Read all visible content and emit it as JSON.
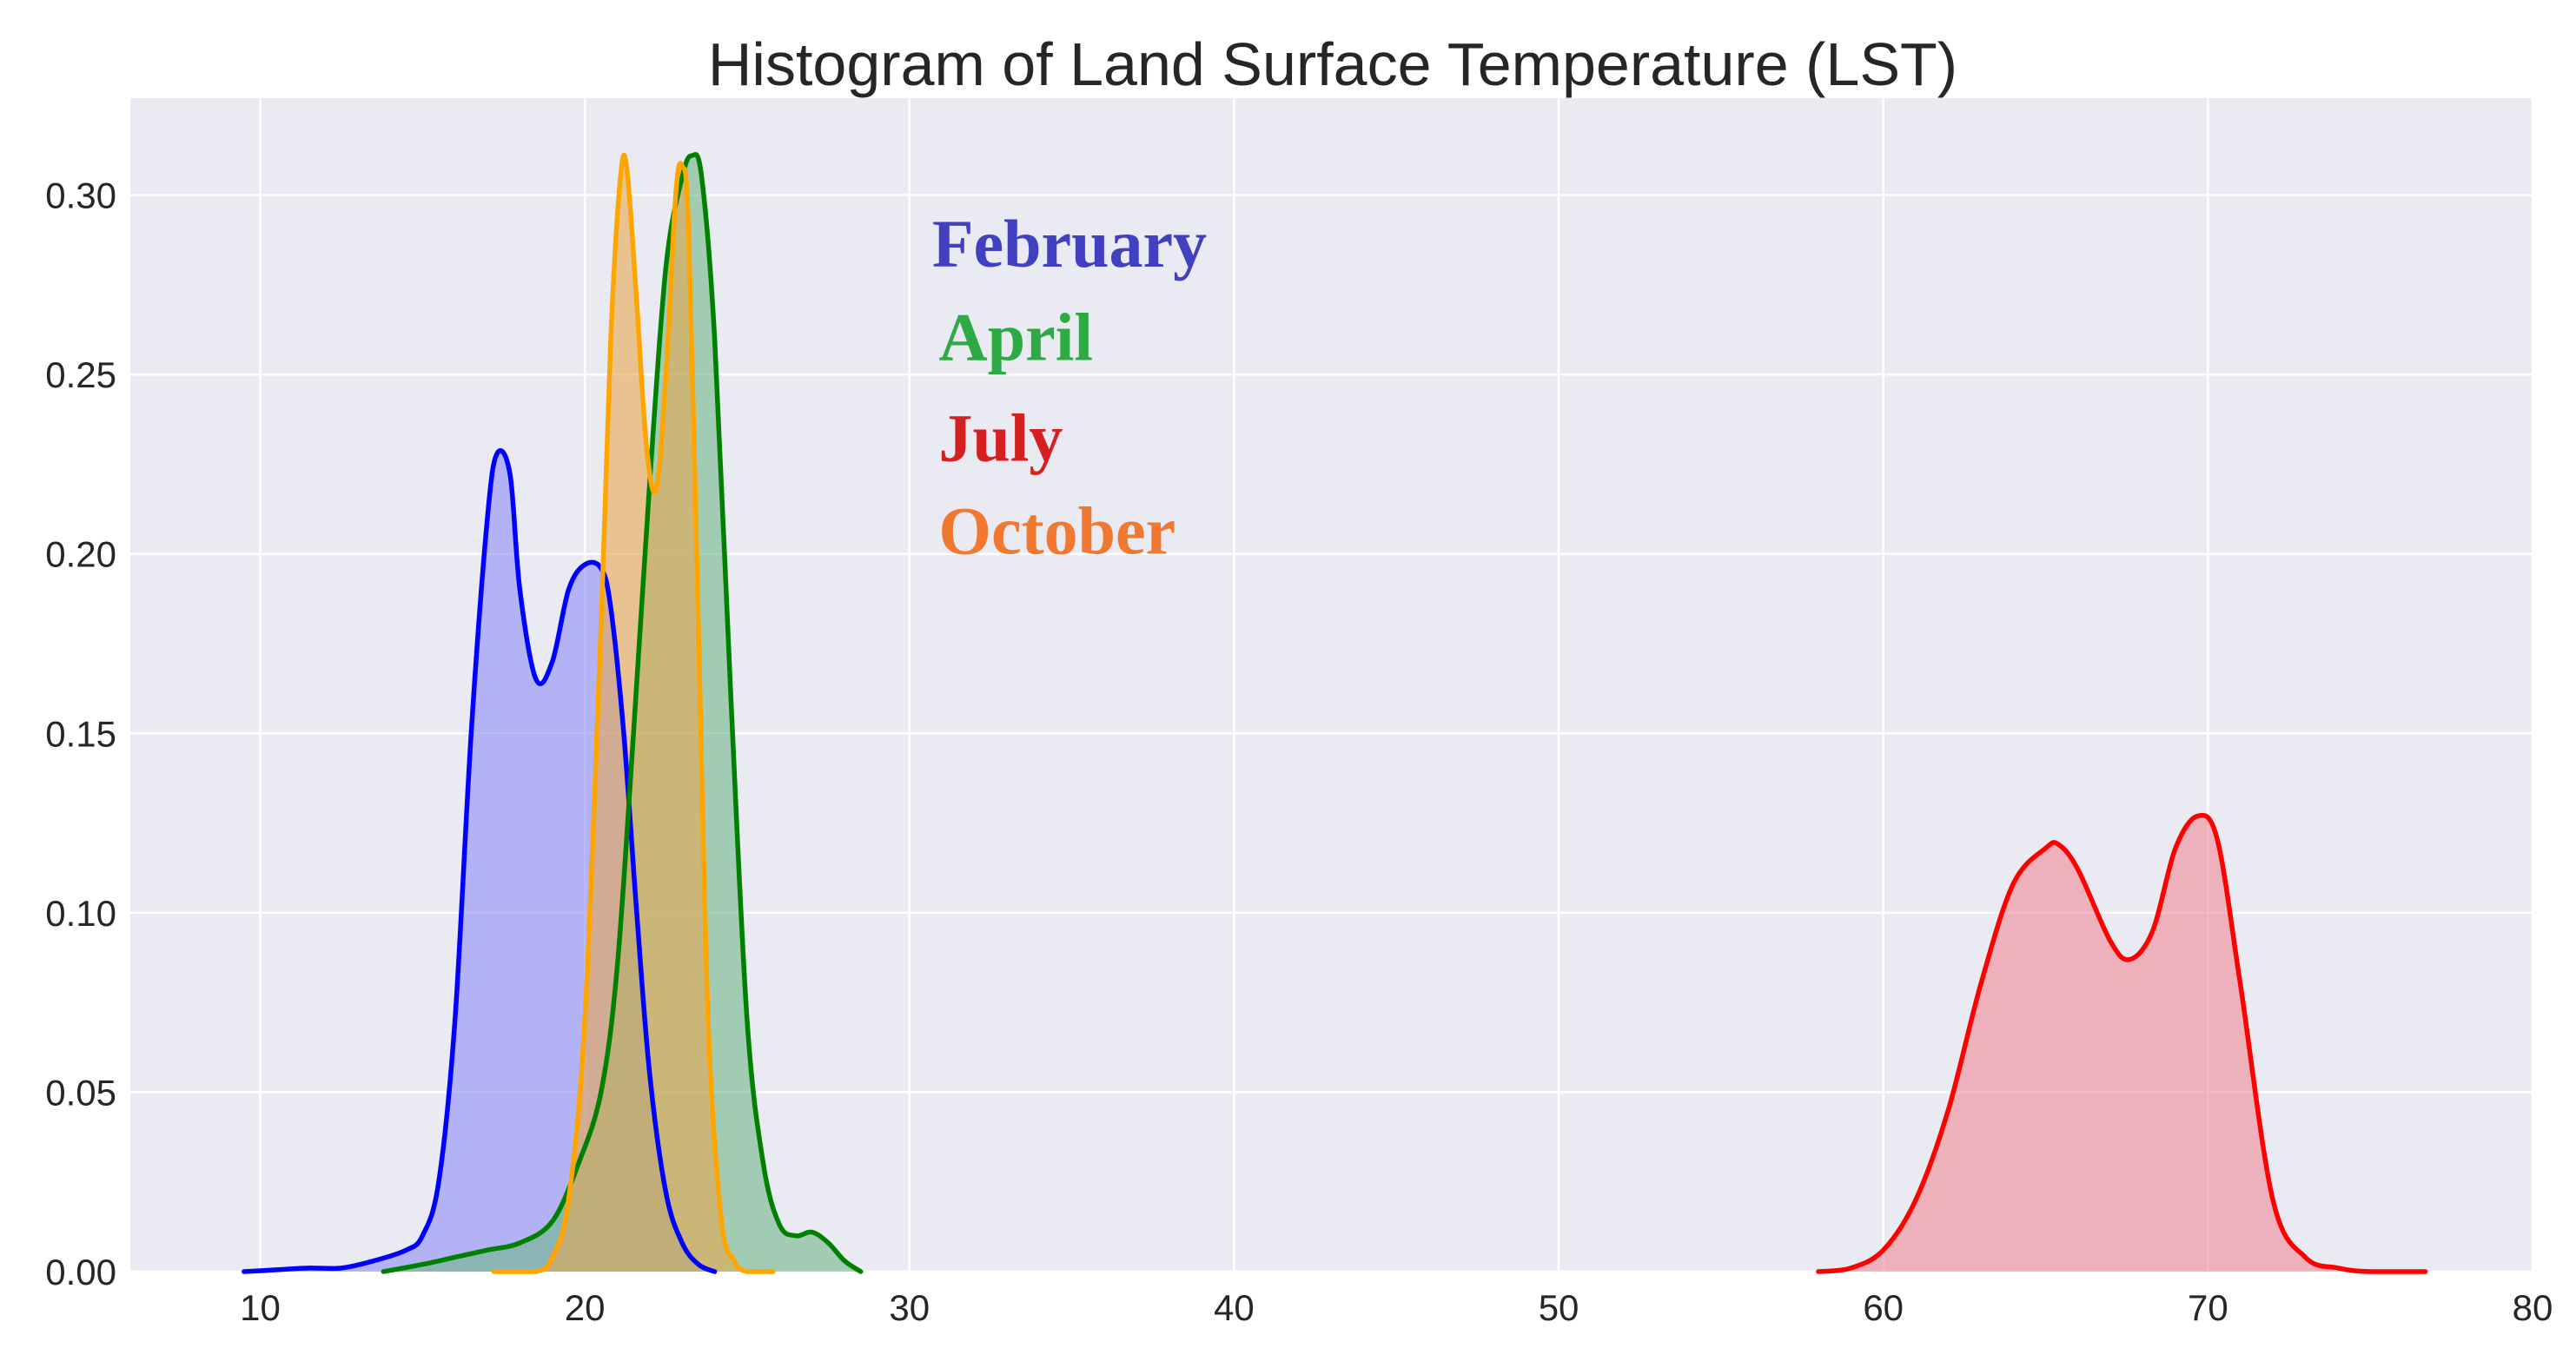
{
  "chart_data": {
    "type": "area",
    "title": "Histogram of Land Surface Temperature (LST)",
    "xlabel": "",
    "ylabel": "",
    "xlim": [
      6,
      80
    ],
    "ylim": [
      0,
      0.327
    ],
    "xticks": [
      10,
      20,
      30,
      40,
      50,
      60,
      70,
      80
    ],
    "yticks": [
      0.0,
      0.05,
      0.1,
      0.15,
      0.2,
      0.25,
      0.3
    ],
    "xtick_labels": [
      "10",
      "20",
      "30",
      "40",
      "50",
      "60",
      "70",
      "80"
    ],
    "ytick_labels": [
      "0.00",
      "0.05",
      "0.10",
      "0.15",
      "0.20",
      "0.25",
      "0.30"
    ],
    "grid": true,
    "background": "#EAEAF2",
    "series": [
      {
        "name": "February",
        "line_color": "#0000FF",
        "fill_color": "#8C8CF5",
        "x": [
          9.5,
          10.5,
          11.5,
          12.5,
          13.5,
          14.5,
          15.0,
          15.5,
          16.0,
          16.5,
          17.0,
          17.3,
          17.7,
          18.0,
          18.5,
          19.0,
          19.5,
          20.0,
          20.5,
          20.8,
          21.2,
          21.6,
          22.0,
          22.5,
          23.0,
          23.5,
          24.0
        ],
        "y": [
          0.0,
          0.0005,
          0.001,
          0.001,
          0.003,
          0.006,
          0.01,
          0.025,
          0.07,
          0.15,
          0.21,
          0.228,
          0.222,
          0.19,
          0.165,
          0.17,
          0.19,
          0.197,
          0.196,
          0.185,
          0.15,
          0.1,
          0.055,
          0.022,
          0.008,
          0.002,
          0.0
        ]
      },
      {
        "name": "April",
        "line_color": "#008000",
        "fill_color": "#6FB888",
        "x": [
          13.8,
          15.0,
          16.0,
          17.0,
          18.0,
          19.0,
          19.8,
          20.5,
          21.0,
          21.5,
          22.0,
          22.5,
          23.0,
          23.3,
          23.6,
          24.0,
          24.5,
          25.0,
          25.5,
          26.0,
          26.5,
          27.0,
          27.5,
          28.0,
          28.5
        ],
        "y": [
          0.0,
          0.002,
          0.004,
          0.006,
          0.008,
          0.014,
          0.03,
          0.05,
          0.085,
          0.15,
          0.22,
          0.28,
          0.305,
          0.311,
          0.305,
          0.26,
          0.16,
          0.07,
          0.03,
          0.013,
          0.01,
          0.011,
          0.008,
          0.003,
          0.0
        ]
      },
      {
        "name": "July",
        "line_color": "#FF0000",
        "fill_color": "#F08A96",
        "x": [
          58.0,
          59.0,
          60.0,
          61.0,
          62.0,
          63.0,
          64.0,
          65.0,
          65.4,
          66.0,
          67.0,
          67.6,
          68.3,
          69.0,
          69.7,
          70.3,
          71.0,
          72.0,
          73.0,
          74.0,
          75.0,
          76.7
        ],
        "y": [
          0.0,
          0.001,
          0.006,
          0.02,
          0.045,
          0.08,
          0.108,
          0.118,
          0.119,
          0.112,
          0.092,
          0.087,
          0.095,
          0.118,
          0.127,
          0.12,
          0.08,
          0.02,
          0.004,
          0.001,
          0.0,
          0.0
        ]
      },
      {
        "name": "October",
        "line_color": "#FFA500",
        "fill_color": "#E6A850",
        "x": [
          17.2,
          18.5,
          19.0,
          19.5,
          20.0,
          20.5,
          20.8,
          21.1,
          21.3,
          21.6,
          21.9,
          22.2,
          22.5,
          22.8,
          23.0,
          23.2,
          23.5,
          23.8,
          24.2,
          24.6,
          25.0,
          25.8
        ],
        "y": [
          0.0,
          0.0,
          0.004,
          0.02,
          0.07,
          0.18,
          0.26,
          0.305,
          0.307,
          0.27,
          0.23,
          0.218,
          0.25,
          0.3,
          0.308,
          0.29,
          0.18,
          0.07,
          0.015,
          0.003,
          0.0,
          0.0
        ]
      }
    ],
    "annotations": [
      {
        "text": "February",
        "color": "#4040C0",
        "x": 30.7,
        "y": 0.28
      },
      {
        "text": "April",
        "color": "#2EAA44",
        "x": 30.9,
        "y": 0.254
      },
      {
        "text": "July",
        "color": "#D42020",
        "x": 30.9,
        "y": 0.226
      },
      {
        "text": "October",
        "color": "#F07830",
        "x": 30.9,
        "y": 0.2
      }
    ]
  }
}
